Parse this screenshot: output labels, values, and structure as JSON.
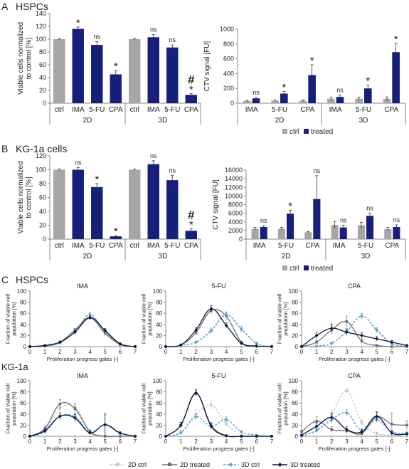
{
  "colors": {
    "gray": "#a6a6a6",
    "navy": "#16207a",
    "light_gray": "#c8c8c8",
    "dark_gray": "#707070",
    "light_blue": "#4aa3d8",
    "dark_navy": "#0d1340"
  },
  "panels": [
    {
      "letter": "A",
      "title": "HSPCs"
    },
    {
      "letter": "B",
      "title": "KG-1a cells"
    },
    {
      "letter": "C",
      "title": "HSPCs",
      "subtitle": "KG-1a"
    }
  ],
  "legend_ab": {
    "ctrl": "ctrl",
    "treated": "treated"
  },
  "legend_c": [
    "2D ctrl",
    "2D treated",
    "3D ctrl",
    "3D treated"
  ],
  "chart_data": [
    {
      "id": "A-viable",
      "type": "bar",
      "ylabel": "Viable cells normalized to control [%]",
      "ylim": [
        0,
        140
      ],
      "yticks": [
        0,
        20,
        40,
        60,
        80,
        100,
        120,
        140
      ],
      "categories": [
        "ctrl",
        "IMA",
        "5-FU",
        "CPA",
        "ctrl",
        "IMA",
        "5-FU",
        "CPA"
      ],
      "groups": [
        "2D",
        "3D"
      ],
      "values": [
        100,
        116,
        91,
        45,
        100,
        103,
        87,
        13
      ],
      "errors": [
        1,
        3,
        5,
        6,
        1,
        4,
        4,
        2
      ],
      "annotations": [
        "",
        "*",
        "ns",
        "*",
        "",
        "ns",
        "ns",
        "*"
      ],
      "extra_marks": [
        {
          "bar": 7,
          "text": "#"
        }
      ]
    },
    {
      "id": "A-ctv",
      "type": "bar",
      "ylabel": "CTV signal [FU]",
      "ylim": [
        0,
        1000
      ],
      "yticks": [
        0,
        200,
        400,
        600,
        800,
        1000
      ],
      "categories": [
        "IMA",
        "5-FU",
        "CPA",
        "IMA",
        "5-FU",
        "CPA"
      ],
      "groups": [
        "2D",
        "3D"
      ],
      "series": [
        {
          "name": "ctrl",
          "values": [
            30,
            35,
            35,
            60,
            60,
            60
          ],
          "errors": [
            8,
            10,
            10,
            20,
            20,
            25
          ]
        },
        {
          "name": "treated",
          "values": [
            65,
            130,
            380,
            85,
            200,
            690
          ],
          "errors": [
            10,
            30,
            140,
            25,
            45,
            120
          ]
        }
      ],
      "annotations": [
        "ns",
        "*",
        "*",
        "ns",
        "*",
        "*"
      ]
    },
    {
      "id": "B-viable",
      "type": "bar",
      "ylabel": "Viable cells normalized to control [%]",
      "ylim": [
        0,
        120
      ],
      "yticks": [
        0,
        20,
        40,
        60,
        80,
        100,
        120
      ],
      "categories": [
        "ctrl",
        "IMA",
        "5-FU",
        "CPA",
        "ctrl",
        "IMA",
        "5-FU",
        "CPA"
      ],
      "groups": [
        "2D",
        "3D"
      ],
      "values": [
        100,
        100,
        75,
        4,
        100,
        108,
        85,
        12
      ],
      "errors": [
        1,
        3,
        5,
        1,
        1,
        5,
        7,
        3
      ],
      "annotations": [
        "",
        "ns",
        "*",
        "*",
        "",
        "ns",
        "ns",
        "*"
      ],
      "extra_marks": [
        {
          "bar": 7,
          "text": "#"
        }
      ]
    },
    {
      "id": "B-ctv",
      "type": "bar",
      "ylabel": "CTV signal [FU]",
      "ylim": [
        0,
        16000
      ],
      "yticks": [
        0,
        2000,
        4000,
        6000,
        8000,
        10000,
        12000,
        14000,
        16000
      ],
      "categories": [
        "IMA",
        "5-FU",
        "CPA",
        "IMA",
        "5-FU",
        "CPA"
      ],
      "groups": [
        "2D",
        "3D"
      ],
      "series": [
        {
          "name": "ctrl",
          "values": [
            2400,
            2400,
            1600,
            3300,
            3200,
            2300
          ],
          "errors": [
            300,
            300,
            150,
            800,
            700,
            400
          ]
        },
        {
          "name": "treated",
          "values": [
            2800,
            5900,
            9300,
            2700,
            5400,
            2800
          ],
          "errors": [
            300,
            800,
            5400,
            500,
            600,
            500
          ]
        }
      ],
      "annotations": [
        "ns",
        "*",
        "ns",
        "ns",
        "ns",
        "ns"
      ]
    },
    {
      "id": "C-HSPC-IMA",
      "type": "line",
      "title": "IMA",
      "xlabel": "Proliferation progress gates [-]",
      "ylabel": "Fraction of viable cell population [%]",
      "x": [
        0,
        1,
        2,
        3,
        4,
        5,
        6,
        7
      ],
      "ylim": [
        0,
        100
      ],
      "yticks": [
        0,
        20,
        40,
        60,
        80,
        100
      ],
      "series": [
        {
          "name": "2D ctrl",
          "values": [
            0,
            1,
            6,
            28,
            58,
            25,
            4,
            0
          ],
          "errors": [
            0,
            0,
            2,
            3,
            4,
            4,
            1,
            0
          ]
        },
        {
          "name": "2D treated",
          "values": [
            0,
            1,
            8,
            30,
            52,
            24,
            4,
            0
          ],
          "errors": [
            0,
            0,
            2,
            3,
            3,
            4,
            1,
            0
          ]
        },
        {
          "name": "3D ctrl",
          "values": [
            0,
            1,
            7,
            27,
            57,
            27,
            5,
            0
          ],
          "errors": [
            0,
            0,
            2,
            3,
            4,
            4,
            1,
            0
          ]
        },
        {
          "name": "3D treated",
          "values": [
            0,
            2,
            8,
            26,
            52,
            29,
            5,
            0
          ],
          "errors": [
            0,
            1,
            2,
            3,
            3,
            4,
            1,
            0
          ]
        }
      ]
    },
    {
      "id": "C-HSPC-5FU",
      "type": "line",
      "title": "5-FU",
      "xlabel": "Proliferation progress gates [-]",
      "ylabel": "Fraction of viable cell population [%]",
      "x": [
        0,
        1,
        2,
        3,
        4,
        5,
        6,
        7
      ],
      "ylim": [
        0,
        100
      ],
      "yticks": [
        0,
        20,
        40,
        60,
        80,
        100
      ],
      "series": [
        {
          "name": "2D ctrl",
          "values": [
            0,
            2,
            8,
            30,
            58,
            30,
            6,
            0
          ],
          "errors": [
            0,
            0,
            2,
            4,
            5,
            4,
            1,
            0
          ]
        },
        {
          "name": "2D treated",
          "values": [
            0,
            3,
            25,
            65,
            55,
            8,
            1,
            0
          ],
          "errors": [
            0,
            1,
            4,
            6,
            6,
            2,
            0,
            0
          ]
        },
        {
          "name": "3D ctrl",
          "values": [
            0,
            2,
            8,
            28,
            57,
            32,
            6,
            0
          ],
          "errors": [
            0,
            0,
            2,
            4,
            5,
            4,
            1,
            0
          ]
        },
        {
          "name": "3D treated",
          "values": [
            0,
            3,
            30,
            68,
            38,
            6,
            1,
            0
          ],
          "errors": [
            0,
            1,
            4,
            6,
            5,
            2,
            0,
            0
          ]
        }
      ]
    },
    {
      "id": "C-HSPC-CPA",
      "type": "line",
      "title": "CPA",
      "xlabel": "Proliferation progress gates [-]",
      "ylabel": "Fraction of viable cell population [%]",
      "x": [
        0,
        1,
        2,
        3,
        4,
        5,
        6,
        7
      ],
      "ylim": [
        0,
        100
      ],
      "yticks": [
        0,
        20,
        40,
        60,
        80,
        100
      ],
      "series": [
        {
          "name": "2D ctrl",
          "values": [
            0,
            1,
            6,
            28,
            55,
            28,
            5,
            0
          ],
          "errors": [
            0,
            0,
            2,
            4,
            5,
            4,
            1,
            0
          ]
        },
        {
          "name": "2D treated",
          "values": [
            0,
            8,
            30,
            45,
            10,
            2,
            0,
            0
          ],
          "errors": [
            0,
            3,
            8,
            10,
            4,
            1,
            0,
            0
          ]
        },
        {
          "name": "3D ctrl",
          "values": [
            0,
            1,
            6,
            27,
            55,
            30,
            6,
            0
          ],
          "errors": [
            0,
            0,
            2,
            4,
            5,
            4,
            1,
            0
          ]
        },
        {
          "name": "3D treated",
          "values": [
            0,
            20,
            33,
            26,
            20,
            14,
            8,
            2
          ],
          "errors": [
            0,
            6,
            8,
            6,
            5,
            4,
            3,
            1
          ]
        }
      ]
    },
    {
      "id": "C-KG-IMA",
      "type": "line",
      "title": "IMA",
      "xlabel": "Proliferation progress gates [-]",
      "ylabel": "Fraction of viable cell population [%]",
      "x": [
        0,
        1,
        2,
        3,
        4,
        5,
        6,
        7
      ],
      "ylim": [
        0,
        100
      ],
      "yticks": [
        0,
        20,
        40,
        60,
        80,
        100
      ],
      "series": [
        {
          "name": "2D ctrl",
          "values": [
            0,
            12,
            50,
            52,
            10,
            0,
            0,
            0
          ],
          "errors": [
            0,
            3,
            8,
            8,
            3,
            0,
            0,
            0
          ]
        },
        {
          "name": "2D treated",
          "values": [
            0,
            14,
            58,
            50,
            8,
            0,
            0,
            0
          ],
          "errors": [
            0,
            4,
            8,
            8,
            3,
            0,
            0,
            0
          ]
        },
        {
          "name": "3D ctrl",
          "values": [
            0,
            8,
            36,
            35,
            8,
            20,
            5,
            0
          ],
          "errors": [
            0,
            3,
            6,
            6,
            3,
            18,
            2,
            0
          ]
        },
        {
          "name": "3D treated",
          "values": [
            0,
            10,
            36,
            33,
            6,
            21,
            6,
            0
          ],
          "errors": [
            0,
            3,
            6,
            6,
            3,
            20,
            2,
            0
          ]
        }
      ]
    },
    {
      "id": "C-KG-5FU",
      "type": "line",
      "title": "5-FU",
      "xlabel": "Proliferation progress gates [-]",
      "ylabel": "Fraction of viable cell population [%]",
      "x": [
        0,
        1,
        2,
        3,
        4,
        5,
        6,
        7
      ],
      "ylim": [
        0,
        100
      ],
      "yticks": [
        0,
        20,
        40,
        60,
        80,
        100
      ],
      "series": [
        {
          "name": "2D ctrl",
          "values": [
            0,
            8,
            40,
            56,
            22,
            2,
            0,
            0
          ],
          "errors": [
            0,
            3,
            8,
            8,
            4,
            1,
            0,
            0
          ]
        },
        {
          "name": "2D treated",
          "values": [
            0,
            20,
            77,
            20,
            1,
            0,
            0,
            0
          ],
          "errors": [
            0,
            5,
            6,
            5,
            1,
            0,
            0,
            0
          ]
        },
        {
          "name": "3D ctrl",
          "values": [
            0,
            6,
            35,
            18,
            30,
            8,
            2,
            0
          ],
          "errors": [
            0,
            2,
            6,
            4,
            5,
            2,
            1,
            0
          ]
        },
        {
          "name": "3D treated",
          "values": [
            0,
            20,
            78,
            18,
            1,
            0,
            0,
            0
          ],
          "errors": [
            0,
            5,
            6,
            5,
            1,
            0,
            0,
            0
          ]
        }
      ]
    },
    {
      "id": "C-KG-CPA",
      "type": "line",
      "title": "CPA",
      "xlabel": "Proliferation progress gates [-]",
      "ylabel": "Fraction of viable cell population [%]",
      "x": [
        0,
        1,
        2,
        3,
        4,
        5,
        6,
        7
      ],
      "ylim": [
        0,
        100
      ],
      "yticks": [
        0,
        20,
        40,
        60,
        80,
        100
      ],
      "series": [
        {
          "name": "2D ctrl",
          "values": [
            0,
            12,
            40,
            82,
            25,
            5,
            2,
            0
          ],
          "errors": [
            0,
            4,
            8,
            5,
            6,
            2,
            1,
            0
          ]
        },
        {
          "name": "2D treated",
          "values": [
            8,
            27,
            12,
            10,
            5,
            35,
            22,
            20
          ],
          "errors": [
            3,
            8,
            5,
            5,
            3,
            8,
            20,
            8
          ]
        },
        {
          "name": "3D ctrl",
          "values": [
            0,
            10,
            30,
            42,
            10,
            30,
            8,
            6
          ],
          "errors": [
            0,
            4,
            6,
            6,
            4,
            6,
            3,
            2
          ]
        },
        {
          "name": "3D treated",
          "values": [
            2,
            18,
            34,
            12,
            8,
            36,
            6,
            4
          ],
          "errors": [
            1,
            6,
            8,
            5,
            4,
            8,
            3,
            2
          ]
        }
      ]
    }
  ]
}
